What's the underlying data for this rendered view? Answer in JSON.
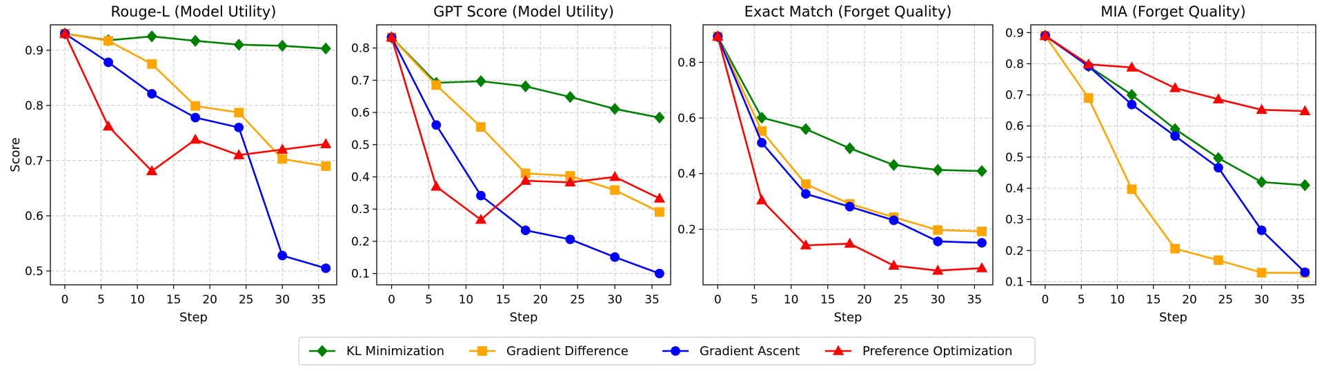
{
  "shared_x": [
    0,
    6,
    12,
    18,
    24,
    30,
    36
  ],
  "series_styles": [
    {
      "name": "KL Minimization",
      "color": "#008000",
      "marker": "diamond"
    },
    {
      "name": "Gradient Difference",
      "color": "#FFA500",
      "marker": "square"
    },
    {
      "name": "Gradient Ascent",
      "color": "#0000FF",
      "marker": "circle"
    },
    {
      "name": "Preference Optimization",
      "color": "#FF0000",
      "marker": "triangle"
    }
  ],
  "legend": {
    "placement": "bottom-center",
    "items": [
      "KL Minimization",
      "Gradient Difference",
      "Gradient Ascent",
      "Preference Optimization"
    ]
  },
  "chart_data": [
    {
      "type": "line",
      "title": "Rouge-L  (Model Utility)",
      "xlabel": "Step",
      "ylabel": "Score",
      "x": [
        0,
        6,
        12,
        18,
        24,
        30,
        36
      ],
      "xlim": [
        -2,
        37.5
      ],
      "ylim": [
        0.475,
        0.946
      ],
      "xticks": [
        0,
        5,
        10,
        15,
        20,
        25,
        30,
        35
      ],
      "yticks": [
        0.5,
        0.6,
        0.7,
        0.8,
        0.9
      ],
      "yticklabels": [
        "0.5",
        "0.6",
        "0.7",
        "0.8",
        "0.9"
      ],
      "grid": true,
      "series": [
        {
          "name": "KL Minimization",
          "values": [
            0.93,
            0.918,
            0.925,
            0.917,
            0.91,
            0.908,
            0.903
          ]
        },
        {
          "name": "Gradient Difference",
          "values": [
            0.93,
            0.917,
            0.875,
            0.799,
            0.787,
            0.703,
            0.69
          ]
        },
        {
          "name": "Gradient Ascent",
          "values": [
            0.93,
            0.878,
            0.821,
            0.778,
            0.76,
            0.528,
            0.505
          ]
        },
        {
          "name": "Preference Optimization",
          "values": [
            0.93,
            0.762,
            0.681,
            0.738,
            0.71,
            0.72,
            0.73
          ]
        }
      ]
    },
    {
      "type": "line",
      "title": "GPT Score  (Model Utility)",
      "xlabel": "Step",
      "ylabel": "",
      "x": [
        0,
        6,
        12,
        18,
        24,
        30,
        36
      ],
      "xlim": [
        -2,
        37.5
      ],
      "ylim": [
        0.065,
        0.872
      ],
      "xticks": [
        0,
        5,
        10,
        15,
        20,
        25,
        30,
        35
      ],
      "yticks": [
        0.1,
        0.2,
        0.3,
        0.4,
        0.5,
        0.6,
        0.7,
        0.8
      ],
      "yticklabels": [
        "0.1",
        "0.2",
        "0.3",
        "0.4",
        "0.5",
        "0.6",
        "0.7",
        "0.8"
      ],
      "grid": true,
      "series": [
        {
          "name": "KL Minimization",
          "values": [
            0.833,
            0.692,
            0.697,
            0.681,
            0.648,
            0.611,
            0.584
          ]
        },
        {
          "name": "Gradient Difference",
          "values": [
            0.833,
            0.685,
            0.555,
            0.411,
            0.403,
            0.359,
            0.291
          ]
        },
        {
          "name": "Gradient Ascent",
          "values": [
            0.833,
            0.561,
            0.342,
            0.234,
            0.206,
            0.151,
            0.1
          ]
        },
        {
          "name": "Preference Optimization",
          "values": [
            0.833,
            0.37,
            0.267,
            0.388,
            0.383,
            0.4,
            0.333
          ]
        }
      ]
    },
    {
      "type": "line",
      "title": "Exact Match (Forget Quality)",
      "xlabel": "Step",
      "ylabel": "",
      "x": [
        0,
        6,
        12,
        18,
        24,
        30,
        36
      ],
      "xlim": [
        -2,
        37.5
      ],
      "ylim": [
        0.0,
        0.935
      ],
      "xticks": [
        0,
        5,
        10,
        15,
        20,
        25,
        30,
        35
      ],
      "yticks": [
        0.2,
        0.4,
        0.6,
        0.8
      ],
      "yticklabels": [
        "0.2",
        "0.4",
        "0.6",
        "0.8"
      ],
      "grid": true,
      "series": [
        {
          "name": "KL Minimization",
          "values": [
            0.893,
            0.601,
            0.56,
            0.491,
            0.431,
            0.413,
            0.409
          ]
        },
        {
          "name": "Gradient Difference",
          "values": [
            0.893,
            0.553,
            0.362,
            0.291,
            0.243,
            0.197,
            0.192
          ]
        },
        {
          "name": "Gradient Ascent",
          "values": [
            0.893,
            0.511,
            0.327,
            0.281,
            0.232,
            0.156,
            0.151
          ]
        },
        {
          "name": "Preference Optimization",
          "values": [
            0.893,
            0.304,
            0.142,
            0.148,
            0.069,
            0.051,
            0.06
          ]
        }
      ]
    },
    {
      "type": "line",
      "title": "MIA (Forget Quality)",
      "xlabel": "Step",
      "ylabel": "",
      "x": [
        0,
        6,
        12,
        18,
        24,
        30,
        36
      ],
      "xlim": [
        -2,
        37.5
      ],
      "ylim": [
        0.09,
        0.925
      ],
      "xticks": [
        0,
        5,
        10,
        15,
        20,
        25,
        30,
        35
      ],
      "yticks": [
        0.1,
        0.2,
        0.3,
        0.4,
        0.5,
        0.6,
        0.7,
        0.8,
        0.9
      ],
      "yticklabels": [
        "0.1",
        "0.2",
        "0.3",
        "0.4",
        "0.5",
        "0.6",
        "0.7",
        "0.8",
        "0.9"
      ],
      "grid": true,
      "series": [
        {
          "name": "KL Minimization",
          "values": [
            0.89,
            0.792,
            0.7,
            0.59,
            0.497,
            0.42,
            0.41
          ]
        },
        {
          "name": "Gradient Difference",
          "values": [
            0.89,
            0.69,
            0.397,
            0.206,
            0.169,
            0.129,
            0.128
          ]
        },
        {
          "name": "Gradient Ascent",
          "values": [
            0.89,
            0.792,
            0.669,
            0.568,
            0.466,
            0.265,
            0.13
          ]
        },
        {
          "name": "Preference Optimization",
          "values": [
            0.89,
            0.798,
            0.788,
            0.722,
            0.686,
            0.652,
            0.648
          ]
        }
      ]
    }
  ]
}
